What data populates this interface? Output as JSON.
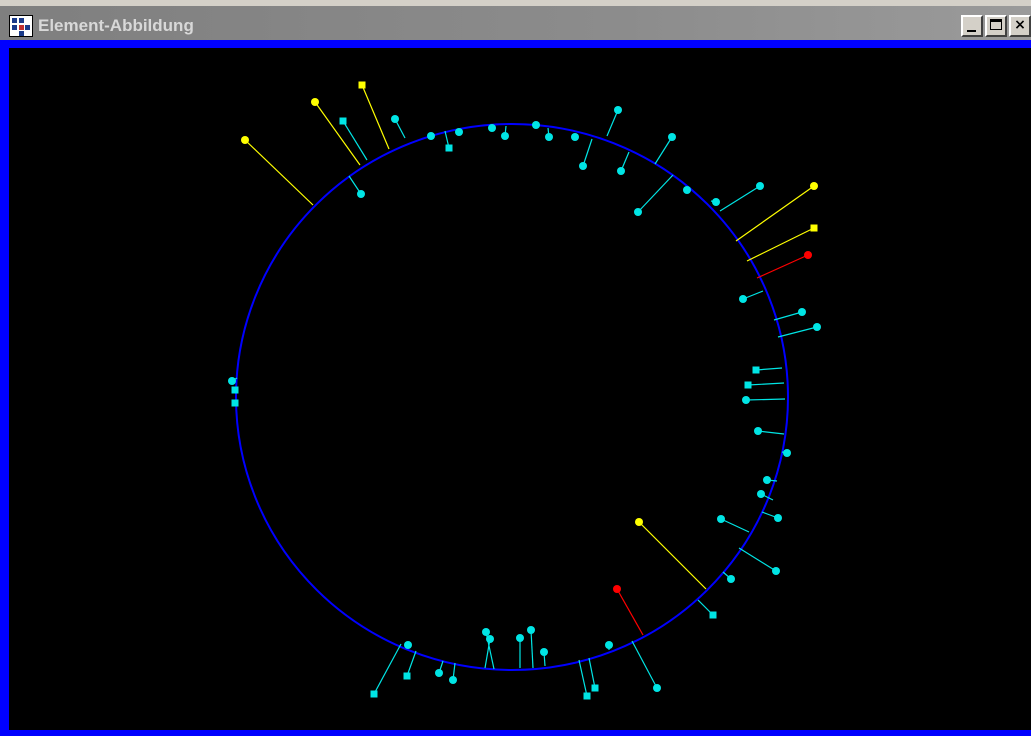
{
  "window": {
    "title": "Element-Abbildung",
    "icon": "app-grid-icon",
    "controls": [
      "minimize-icon",
      "maximize-icon",
      "close-icon"
    ]
  },
  "canvas": {
    "background": "#000000",
    "ring_color": "#0000ff",
    "colors": {
      "cyan": "#00e5e5",
      "yellow": "#ffff00",
      "red": "#ff0000"
    }
  },
  "markers_legend_note": ""
}
